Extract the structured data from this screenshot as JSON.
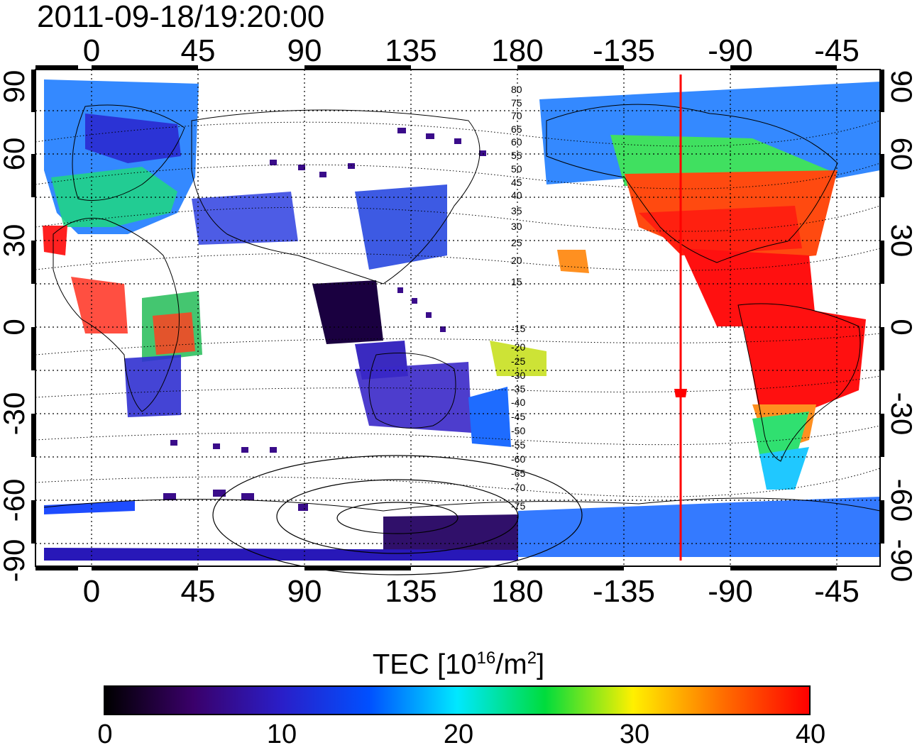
{
  "title": "2011-09-18/19:20:00",
  "map": {
    "top_lon_labels": [
      "0",
      "45",
      "90",
      "135",
      "180",
      "-135",
      "-90",
      "-45"
    ],
    "bottom_lon_labels": [
      "0",
      "45",
      "90",
      "135",
      "180",
      "-135",
      "-90",
      "-45"
    ],
    "left_lat_labels": [
      "90",
      "60",
      "30",
      "0",
      "-30",
      "-60",
      "-90"
    ],
    "right_lat_labels": [
      "90",
      "60",
      "30",
      "0",
      "-30",
      "-60",
      "-90"
    ],
    "contour_labels": [
      "80",
      "75",
      "70",
      "65",
      "60",
      "55",
      "50",
      "45",
      "40",
      "35",
      "30",
      "25",
      "20",
      "15",
      "-15",
      "-20",
      "-25",
      "-30",
      "-35",
      "-40",
      "-45",
      "-50",
      "-55",
      "-60",
      "-65",
      "-70",
      "-75"
    ],
    "terminator_lon": -110,
    "terminator_color": "#ff0000"
  },
  "colorbar": {
    "title_prefix": "TEC  [10",
    "title_exp1": "16",
    "title_mid": "/m",
    "title_exp2": "2",
    "title_suffix": "]",
    "min": 0,
    "max": 40,
    "ticks": [
      "0",
      "10",
      "20",
      "30",
      "40"
    ],
    "colors": [
      "#000000",
      "#3a006a",
      "#2a1ec8",
      "#0050ff",
      "#00e8ff",
      "#00dc3c",
      "#fff000",
      "#ff7000",
      "#ff0000"
    ]
  }
}
